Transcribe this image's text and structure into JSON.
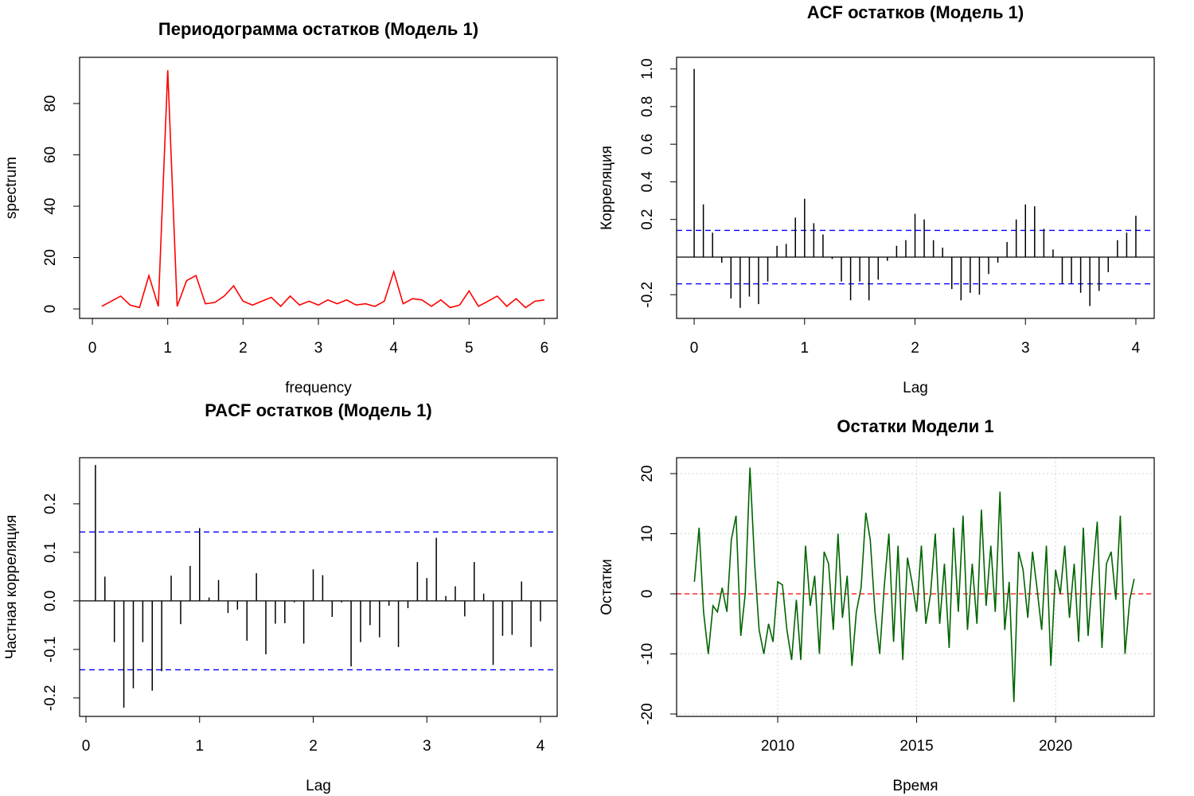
{
  "chart_data": [
    {
      "type": "line",
      "title": "Периодограмма остатков (Модель 1)",
      "xlabel": "frequency",
      "ylabel": "spectrum",
      "color": "#ff0000",
      "x": [
        0.125,
        0.25,
        0.375,
        0.5,
        0.625,
        0.75,
        0.875,
        1,
        1.125,
        1.25,
        1.375,
        1.5,
        1.625,
        1.75,
        1.875,
        2,
        2.125,
        2.25,
        2.375,
        2.5,
        2.625,
        2.75,
        2.875,
        3,
        3.125,
        3.25,
        3.375,
        3.5,
        3.625,
        3.75,
        3.875,
        4,
        4.125,
        4.25,
        4.375,
        4.5,
        4.625,
        4.75,
        4.875,
        5,
        5.125,
        5.25,
        5.375,
        5.5,
        5.625,
        5.75,
        5.875,
        6
      ],
      "values": [
        1,
        3,
        5,
        1.5,
        0.5,
        13,
        1,
        93,
        1,
        11,
        13,
        2,
        2.5,
        5,
        9,
        3,
        1.5,
        3,
        4.5,
        1,
        5,
        1.5,
        3,
        1.5,
        3.5,
        2,
        3.5,
        1.5,
        2,
        1,
        3,
        14.5,
        2,
        4,
        3.5,
        1,
        3.5,
        0.5,
        1.5,
        7,
        1,
        3,
        5,
        1,
        4,
        0.5,
        3,
        3.5
      ],
      "xlim": [
        -0.17,
        6.17
      ],
      "xticks": [
        0,
        1,
        2,
        3,
        4,
        5,
        6
      ],
      "ylim": [
        -3.7,
        98
      ],
      "yticks": [
        0,
        20,
        40,
        60,
        80
      ]
    },
    {
      "type": "stem",
      "title": "ACF остатков (Модель 1)",
      "xlabel": "Lag",
      "ylabel": "Корреляция",
      "color": "#000000",
      "ci_color": "#0000ff",
      "ci": [
        0.142,
        -0.142
      ],
      "x": [
        0,
        0.0833,
        0.1667,
        0.25,
        0.3333,
        0.4167,
        0.5,
        0.5833,
        0.6667,
        0.75,
        0.8333,
        0.9167,
        1,
        1.0833,
        1.1667,
        1.25,
        1.3333,
        1.4167,
        1.5,
        1.5833,
        1.6667,
        1.75,
        1.8333,
        1.9167,
        2,
        2.0833,
        2.1667,
        2.25,
        2.3333,
        2.4167,
        2.5,
        2.5833,
        2.6667,
        2.75,
        2.8333,
        2.9167,
        3,
        3.0833,
        3.1667,
        3.25,
        3.3333,
        3.4167,
        3.5,
        3.5833,
        3.6667,
        3.75,
        3.8333,
        3.9167,
        4
      ],
      "values": [
        1,
        0.28,
        0.13,
        -0.03,
        -0.22,
        -0.27,
        -0.21,
        -0.25,
        -0.13,
        0.06,
        0.07,
        0.21,
        0.31,
        0.18,
        0.12,
        -0.01,
        -0.13,
        -0.23,
        -0.13,
        -0.23,
        -0.12,
        -0.02,
        0.06,
        0.09,
        0.23,
        0.2,
        0.09,
        0.05,
        -0.17,
        -0.23,
        -0.19,
        -0.2,
        -0.09,
        -0.03,
        0.08,
        0.2,
        0.28,
        0.27,
        0.15,
        0.04,
        -0.14,
        -0.14,
        -0.19,
        -0.26,
        -0.18,
        -0.08,
        0.09,
        0.13,
        0.22
      ],
      "xlim": [
        -0.159,
        4.166
      ],
      "xticks": [
        0,
        1,
        2,
        3,
        4
      ],
      "ylim": [
        -0.326,
        1.062
      ],
      "yticks": [
        -0.2,
        0.2,
        0.4,
        0.6,
        0.8,
        {
          "value": 1,
          "label": "1.0"
        }
      ]
    },
    {
      "type": "stem",
      "title": "PACF остатков (Модель 1)",
      "xlabel": "Lag",
      "ylabel": "Частная корреляция",
      "color": "#000000",
      "ci_color": "#0000ff",
      "ci": [
        0.142,
        -0.142
      ],
      "x": [
        0.0833,
        0.1667,
        0.25,
        0.3333,
        0.4167,
        0.5,
        0.5833,
        0.6667,
        0.75,
        0.8333,
        0.9167,
        1,
        1.0833,
        1.1667,
        1.25,
        1.3333,
        1.4167,
        1.5,
        1.5833,
        1.6667,
        1.75,
        1.8333,
        1.9167,
        2,
        2.0833,
        2.1667,
        2.25,
        2.3333,
        2.4167,
        2.5,
        2.5833,
        2.6667,
        2.75,
        2.8333,
        2.9167,
        3,
        3.0833,
        3.1667,
        3.25,
        3.3333,
        3.4167,
        3.5,
        3.5833,
        3.6667,
        3.75,
        3.8333,
        3.9167,
        4
      ],
      "values": [
        0.28,
        0.05,
        -0.085,
        -0.22,
        -0.18,
        -0.085,
        -0.185,
        -0.145,
        0.052,
        -0.048,
        0.072,
        0.15,
        0.007,
        0.043,
        -0.025,
        -0.018,
        -0.082,
        0.057,
        -0.11,
        -0.047,
        -0.046,
        -0.003,
        -0.088,
        0.065,
        0.053,
        -0.033,
        -0.003,
        -0.135,
        -0.085,
        -0.05,
        -0.075,
        -0.01,
        -0.095,
        -0.015,
        0.08,
        0.047,
        0.13,
        0.01,
        0.03,
        -0.032,
        0.08,
        0.015,
        -0.132,
        -0.072,
        -0.07,
        0.04,
        -0.095,
        -0.042
      ],
      "xlim": [
        -0.056,
        4.147
      ],
      "xticks": [
        0,
        1,
        2,
        3,
        4
      ],
      "ylim": [
        -0.238,
        0.295
      ],
      "yticks": [
        -0.2,
        -0.1,
        {
          "value": 0,
          "label": "0.0"
        },
        0.1,
        0.2
      ]
    },
    {
      "type": "line",
      "title": "Остатки Модели 1",
      "xlabel": "Время",
      "ylabel": "Остатки",
      "color": "#006400",
      "grid": true,
      "hline": 0,
      "hline_color": "#ff0000",
      "x": [
        2007,
        2007.17,
        2007.33,
        2007.5,
        2007.67,
        2007.83,
        2008,
        2008.17,
        2008.33,
        2008.5,
        2008.67,
        2008.83,
        2009,
        2009.17,
        2009.33,
        2009.5,
        2009.67,
        2009.83,
        2010,
        2010.17,
        2010.33,
        2010.5,
        2010.67,
        2010.83,
        2011,
        2011.17,
        2011.33,
        2011.5,
        2011.67,
        2011.83,
        2012,
        2012.17,
        2012.33,
        2012.5,
        2012.67,
        2012.83,
        2013,
        2013.17,
        2013.33,
        2013.5,
        2013.67,
        2013.83,
        2014,
        2014.17,
        2014.33,
        2014.5,
        2014.67,
        2014.83,
        2015,
        2015.17,
        2015.33,
        2015.5,
        2015.67,
        2015.83,
        2016,
        2016.17,
        2016.33,
        2016.5,
        2016.67,
        2016.83,
        2017,
        2017.17,
        2017.33,
        2017.5,
        2017.67,
        2017.83,
        2018,
        2018.17,
        2018.33,
        2018.5,
        2018.67,
        2018.83,
        2019,
        2019.17,
        2019.33,
        2019.5,
        2019.67,
        2019.83,
        2020,
        2020.17,
        2020.33,
        2020.5,
        2020.67,
        2020.83,
        2021,
        2021.17,
        2021.33,
        2021.5,
        2021.67,
        2021.83,
        2022,
        2022.17,
        2022.33,
        2022.5,
        2022.67,
        2022.83
      ],
      "values": [
        2,
        11,
        -3,
        -10,
        -2,
        -3,
        1,
        -3,
        9,
        13,
        -7,
        0,
        21,
        5,
        -6,
        -10,
        -5,
        -8,
        2,
        1.5,
        -6,
        -11,
        -1,
        -11,
        8,
        -2,
        3,
        -10,
        7,
        5,
        -6,
        10,
        -4,
        3,
        -12,
        -3,
        1,
        13.5,
        9,
        -3,
        -10,
        1,
        10,
        -8,
        8,
        -11,
        6,
        2,
        -3,
        8,
        -5,
        0,
        10,
        -5,
        5,
        -9,
        11,
        -3,
        13,
        -6,
        5,
        -5,
        14,
        -2,
        8,
        -3,
        17,
        -6,
        2,
        -18,
        7,
        4,
        -4,
        7,
        1,
        -6,
        8,
        -12,
        4,
        0,
        8,
        -4,
        5,
        -8,
        11,
        -7,
        3,
        12,
        -9,
        5,
        7,
        -1,
        13,
        -10,
        -1,
        2.5
      ],
      "xlim": [
        2006.36,
        2023.55
      ],
      "xticks": [
        2010,
        2015,
        2020
      ],
      "ylim": [
        -20.4,
        22.65
      ],
      "yticks": [
        -20,
        -10,
        0,
        10,
        20
      ]
    }
  ]
}
